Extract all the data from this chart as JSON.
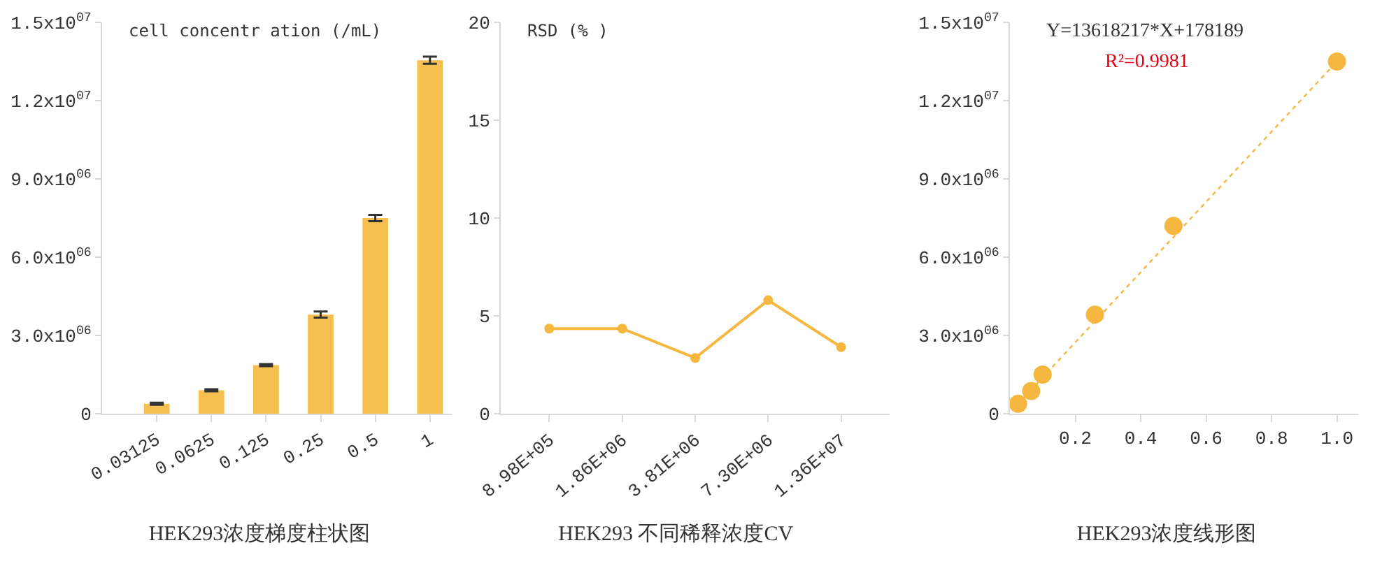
{
  "chart_data": [
    {
      "type": "bar",
      "title": "HEK293浓度梯度柱状图",
      "ylabel": "cell concentr ation (/mL)",
      "categories": [
        "0.03125",
        "0.0625",
        "0.125",
        "0.25",
        "0.5",
        "1"
      ],
      "values": [
        380000,
        900000,
        1860000,
        3800000,
        7500000,
        13550000
      ],
      "errors": [
        40000,
        40000,
        40000,
        120000,
        120000,
        140000
      ],
      "color": "#f6c050",
      "ylim": [
        0,
        15000000
      ],
      "yticks": [
        0,
        {
          "value": 3000000,
          "label": "3.0x10$^{06}$"
        },
        {
          "value": 6000000,
          "label": "6.0x10$^{06}$"
        },
        {
          "value": 9000000,
          "label": "9.0x10$^{06}$"
        },
        {
          "value": 12000000,
          "label": "1.2x10$^{07}$"
        },
        {
          "value": 15000000,
          "label": "1.5x10$^{07}$"
        }
      ]
    },
    {
      "type": "line",
      "title": "HEK293 不同稀释浓度CV",
      "ylabel": "RSD (% )",
      "categories": [
        "8.98E+05",
        "1.86E+06",
        "3.81E+06",
        "7.30E+06",
        "1.36E+07"
      ],
      "values": [
        4.35,
        4.35,
        2.85,
        5.8,
        3.4
      ],
      "color": "#f5b73f",
      "ylim": [
        0,
        20
      ],
      "yticks": [
        0,
        5,
        10,
        15,
        20
      ],
      "marker": "circle"
    },
    {
      "type": "scatter",
      "title": "HEK293浓度线形图",
      "annotations": [
        "Y=13618217*X+178189",
        "R²=0.9981"
      ],
      "xlim": [
        0,
        1.065
      ],
      "xticks": [
        0.2,
        0.4,
        0.6,
        0.8,
        {
          "value": 1,
          "label": "1.0"
        }
      ],
      "ylim": [
        0,
        15000000
      ],
      "yticks": [
        0,
        {
          "value": 3000000,
          "label": "3.0x10$^{06}$"
        },
        {
          "value": 6000000,
          "label": "6.0x10$^{06}$"
        },
        {
          "value": 9000000,
          "label": "9.0x10$^{06}$"
        },
        {
          "value": 12000000,
          "label": "1.2x10$^{07}$"
        },
        {
          "value": 15000000,
          "label": "1.5x10$^{07}$"
        }
      ],
      "series": [
        {
          "color": "#f5b73f",
          "x": [
            0.025,
            0.065,
            0.1,
            0.26,
            0.5,
            1.0
          ],
          "values": [
            380000,
            870000,
            1500000,
            3800000,
            7200000,
            13500000
          ]
        },
        {
          "type": "line",
          "color": "#f5b73f",
          "x": [
            0.025,
            1.0
          ],
          "values": [
            380000,
            13500000
          ]
        }
      ],
      "line_style": "dotted"
    }
  ]
}
